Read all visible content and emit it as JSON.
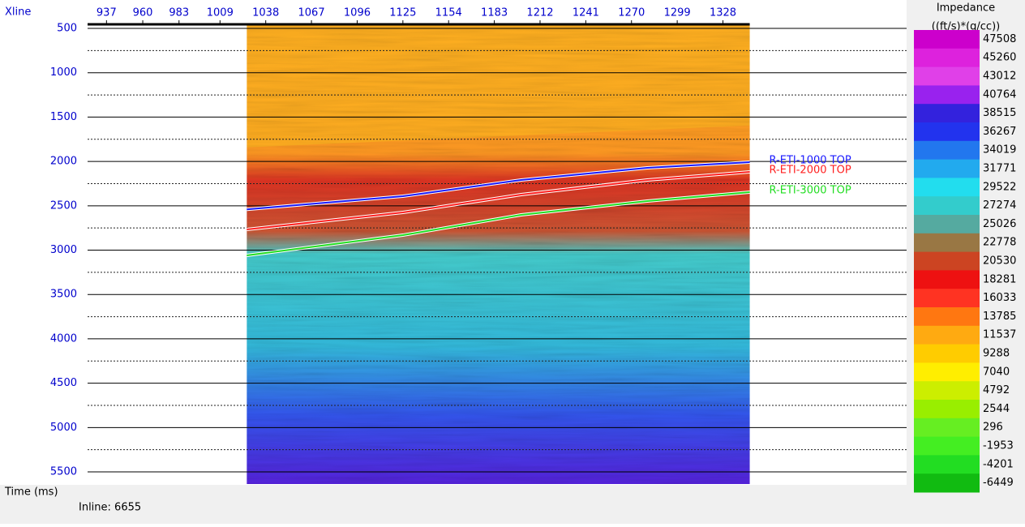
{
  "chart_data": {
    "type": "seismic-section",
    "x_label": "Xline",
    "y_label": "Time (ms)",
    "subtitle": "Inline: 6655",
    "xlim": [
      925,
      1444.5
    ],
    "xticks": [
      937,
      960,
      983,
      1009,
      1038,
      1067,
      1096,
      1125,
      1154,
      1183,
      1212,
      1241,
      1270,
      1299,
      1328
    ],
    "ylim": [
      454,
      5637
    ],
    "yticks": [
      500,
      1000,
      1500,
      2000,
      2500,
      3000,
      3500,
      4000,
      4500,
      5000,
      5500
    ],
    "minor_yticks": [
      750,
      1250,
      1750,
      2250,
      2750,
      3250,
      3750,
      4250,
      4750,
      5250
    ],
    "section_xlim": [
      1026,
      1345
    ],
    "series": [
      {
        "name": "R-ETI-1000 TOP",
        "color": "#1a1aff",
        "x": [
          1026,
          1125,
          1200,
          1280,
          1345
        ],
        "values": [
          2540,
          2392,
          2209,
          2072,
          2008
        ]
      },
      {
        "name": "R-ETI-2000 TOP",
        "color": "#ff2020",
        "x": [
          1026,
          1125,
          1200,
          1280,
          1345
        ],
        "values": [
          2767,
          2575,
          2374,
          2209,
          2118
        ]
      },
      {
        "name": "R-ETI-3000 TOP",
        "color": "#22dd22",
        "x": [
          1026,
          1125,
          1200,
          1280,
          1345
        ],
        "values": [
          3059,
          2831,
          2602,
          2447,
          2346
        ]
      }
    ],
    "colorbar": {
      "title": "Impedance",
      "unit": "((ft/s)*(g/cc))",
      "ticks": [
        47508,
        45260,
        43012,
        40764,
        38515,
        36267,
        34019,
        31771,
        29522,
        27274,
        25026,
        22778,
        20530,
        18281,
        16033,
        13785,
        11537,
        9288,
        7040,
        4792,
        2544,
        296,
        -1953,
        -4201,
        -6449
      ],
      "colors": [
        "#cc00cc",
        "#dd22dd",
        "#e040e8",
        "#9922ee",
        "#3322dd",
        "#2233ee",
        "#2277ee",
        "#22aaee",
        "#22ddee",
        "#33cccc",
        "#55aaa0",
        "#997744",
        "#cc4422",
        "#ee1111",
        "#ff3322",
        "#ff7711",
        "#ffaa11",
        "#ffcc00",
        "#ffee00",
        "#ccee00",
        "#99ee00",
        "#66ee22",
        "#44ee22",
        "#22dd22",
        "#11bb11"
      ]
    }
  }
}
